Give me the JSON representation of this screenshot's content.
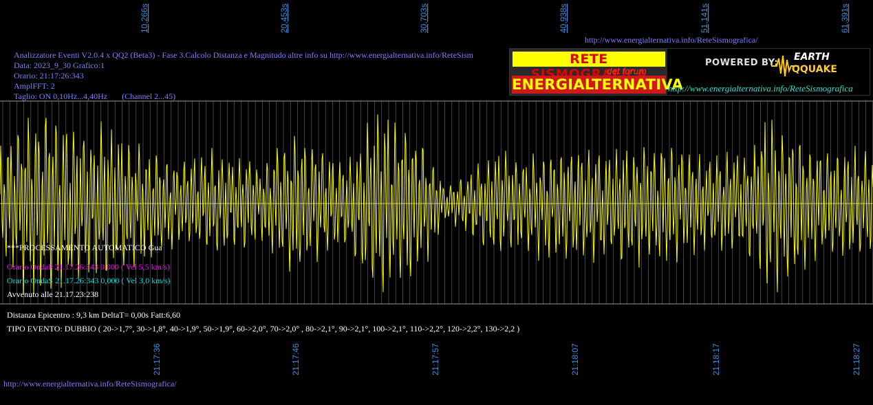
{
  "header": {
    "title": "Analizzatore Eventi V2.0.4 x QQ2 (Beta3) - Fase 3.Calcolo Distanza e Magnitudo altre info su http://www.energialternativa.info/ReteSism",
    "data_line": "Data: 2023_9_30 Grafico:1",
    "orario_line": "Orario: 21:17:26:343",
    "amplfft_line": "AmplFFT: 2",
    "taglio_line": "Taglio: ON 0,10Hz...4,40Hz       (Channel 2...45)",
    "top_url": "http://www.energialternativa.info/ReteSismografica/"
  },
  "logo": {
    "rete": "RETE SISMOGRAFICA",
    "forum": "del forum",
    "energialternativa": "ENERGIALTERNATIVA",
    "powered_by": "POWERED BY:",
    "earth": "EARTH",
    "qquake": "QQUAKE",
    "url": "http://www.energialternativa.info/ReteSismografica"
  },
  "analysis": {
    "processing": "***PROCESSAMENTO AUTOMATICO Gua",
    "onda_p": "Orario OndaP 21.17.26:343  0,000 ( Vel 5,5 km/s)",
    "onda_s": "Orario OndaS 21.17.26:343  0,000 ( Vel 3,0 km/s)",
    "avvenuto": "Avvenuto alle 21.17.23:238",
    "distanza": "Distanza Epicentro : 9,3 km DeltaT= 0,00s  Fatt:6,60",
    "tipo_evento": "TIPO EVENTO: DUBBIO ( 20->1,7°, 30->1,8°, 40->1,9°, 50->1,9°, 60->2,0°, 70->2,0° , 80->2,1°, 90->2,1°, 100->2,1°, 110->2,2°, 120->2,2°, 130->2,2 )"
  },
  "footer_url": "http://www.energialternativa.info/ReteSismografica/",
  "colors": {
    "waveform": "#ffff00",
    "axis_label": "#3b8fe0",
    "grid": "#8a8a8a",
    "info_text": "#7f7fff"
  },
  "chart_data": {
    "type": "line",
    "top_ticks": [
      "10,266s",
      "20,453s",
      "30,703s",
      "40,938s",
      "51,141s",
      "61,391s"
    ],
    "bottom_ticks": [
      "21:17:36",
      "21:17:46",
      "21:17:57",
      "21:18:07",
      "21:18:17",
      "21:18:27"
    ],
    "envelope": [
      [
        0,
        0.55
      ],
      [
        0.03,
        0.9
      ],
      [
        0.06,
        0.95
      ],
      [
        0.09,
        0.8
      ],
      [
        0.13,
        0.75
      ],
      [
        0.17,
        0.55
      ],
      [
        0.21,
        0.45
      ],
      [
        0.255,
        0.55
      ],
      [
        0.3,
        0.45
      ],
      [
        0.34,
        0.75
      ],
      [
        0.37,
        0.55
      ],
      [
        0.4,
        0.45
      ],
      [
        0.43,
        1.0
      ],
      [
        0.46,
        0.9
      ],
      [
        0.49,
        0.55
      ],
      [
        0.51,
        0.15
      ],
      [
        0.54,
        0.35
      ],
      [
        0.57,
        0.55
      ],
      [
        0.6,
        0.5
      ],
      [
        0.65,
        0.6
      ],
      [
        0.7,
        0.55
      ],
      [
        0.74,
        0.65
      ],
      [
        0.78,
        0.55
      ],
      [
        0.82,
        0.5
      ],
      [
        0.86,
        0.55
      ],
      [
        0.88,
        0.9
      ],
      [
        0.91,
        0.75
      ],
      [
        0.94,
        0.55
      ],
      [
        0.97,
        0.6
      ],
      [
        1.0,
        0.5
      ]
    ]
  }
}
